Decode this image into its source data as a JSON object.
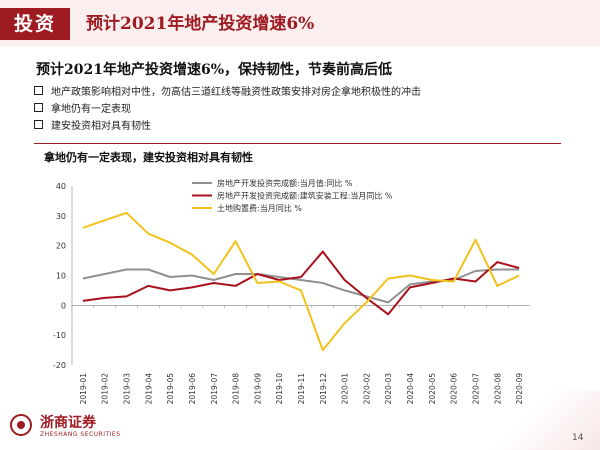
{
  "header": {
    "tag": "投资",
    "title": "预计2021年地产投资增速6%"
  },
  "headline": "预计2021年地产投资增速6%，保持韧性，节奏前高后低",
  "bullets": [
    "地产政策影响相对中性，勿高估三道红线等融资性政策安排对房企拿地积极性的冲击",
    "拿地仍有一定表现",
    "建安投资相对具有韧性"
  ],
  "chart_title": "拿地仍有一定表现，建安投资相对具有韧性",
  "colors": {
    "brand": "#9e1b22",
    "series_gray": "#909090",
    "series_red": "#a8121c",
    "series_yellow": "#f2c21b"
  },
  "chart_data": {
    "type": "line",
    "title": "拿地仍有一定表现，建安投资相对具有韧性",
    "xlabel": "",
    "ylabel": "",
    "ylim": [
      -20,
      40
    ],
    "yticks": [
      -20,
      -10,
      0,
      10,
      20,
      30,
      40
    ],
    "x": [
      "2019-01",
      "2019-02",
      "2019-03",
      "2019-04",
      "2019-05",
      "2019-06",
      "2019-07",
      "2019-08",
      "2019-09",
      "2019-10",
      "2019-11",
      "2019-12",
      "2020-01",
      "2020-02",
      "2020-03",
      "2020-04",
      "2020-05",
      "2020-06",
      "2020-07",
      "2020-08",
      "2020-09"
    ],
    "legend_position": "top",
    "series": [
      {
        "name": "房地产开发投资完成额:当月值:同比 %",
        "color": "#909090",
        "values": [
          9,
          10.5,
          12,
          12,
          9.5,
          10,
          8.5,
          10.5,
          10.5,
          9.5,
          8.5,
          7.5,
          5,
          3,
          1,
          7,
          8,
          8.5,
          11.5,
          12,
          12
        ]
      },
      {
        "name": "房地产开发投资完成额:建筑安装工程:当月同比 %",
        "color": "#a8121c",
        "values": [
          1.5,
          2.5,
          3,
          6.5,
          5,
          6,
          7.5,
          6.5,
          10.5,
          8.5,
          9.5,
          18,
          8.5,
          2.5,
          -3,
          6,
          7.5,
          9,
          8,
          14.5,
          12.5
        ]
      },
      {
        "name": "土地购置费:当月同比 %",
        "color": "#f2c21b",
        "values": [
          26,
          28.5,
          31,
          24,
          21,
          17,
          10.5,
          21.5,
          7.5,
          8,
          5,
          -15,
          -6,
          1,
          9,
          10,
          8.5,
          8,
          22,
          6.5,
          10
        ]
      }
    ]
  },
  "footer": {
    "logo_cn": "浙商证券",
    "logo_en": "ZHESHANG SECURITIES",
    "page": "14"
  }
}
